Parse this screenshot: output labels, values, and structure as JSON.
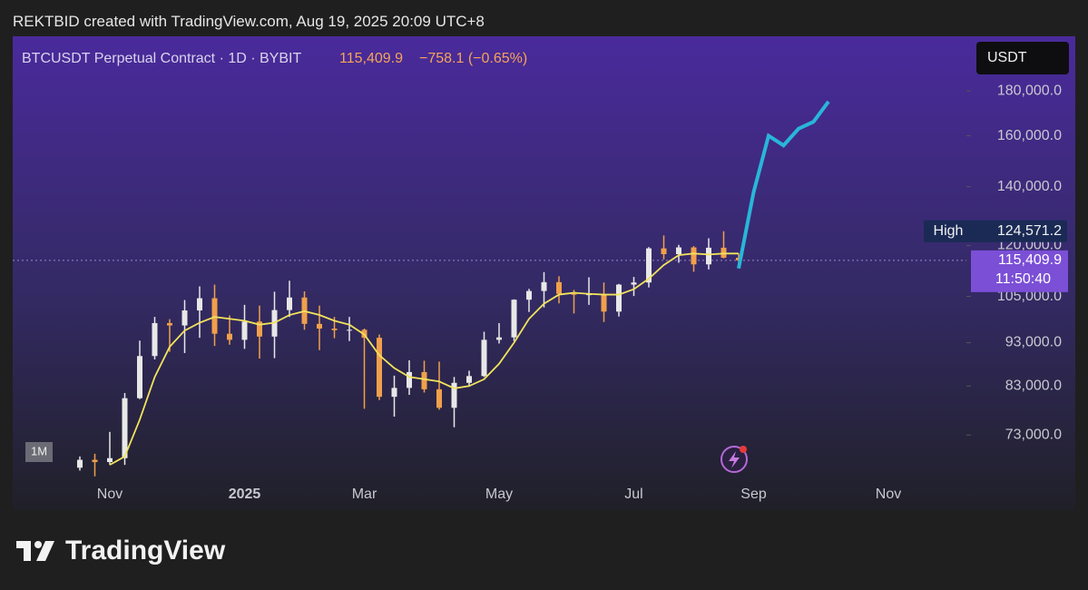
{
  "header": "REKTBID created with TradingView.com, Aug 19, 2025 20:09 UTC+8",
  "chart_data": {
    "type": "candlestick",
    "title": "BTCUSDT Perpetual Contract · 1D · BYBIT",
    "last": {
      "value": 115409.9,
      "label": "115,409.9"
    },
    "change_label": "−758.1 (−0.65%)",
    "countdown": "11:50:40",
    "currency": "USDT",
    "interval_badge": "1M",
    "high_marker": {
      "text": "High",
      "value": 124571.2,
      "label": "124,571.2"
    },
    "log_scale": true,
    "ylim": [
      65000,
      207700
    ],
    "yticks": [
      {
        "value": 73000,
        "label": "73,000.0"
      },
      {
        "value": 83000,
        "label": "83,000.0"
      },
      {
        "value": 93000,
        "label": "93,000.0"
      },
      {
        "value": 105000,
        "label": "105,000.0"
      },
      {
        "value": 120000,
        "label": "120,000.0"
      },
      {
        "value": 140000,
        "label": "140,000.0"
      },
      {
        "value": 160000,
        "label": "160,000.0"
      },
      {
        "value": 180000,
        "label": "180,000.0"
      }
    ],
    "categories": [
      null,
      null,
      "Nov",
      null,
      null,
      null,
      null,
      null,
      null,
      null,
      null,
      "2025",
      null,
      null,
      null,
      null,
      null,
      null,
      null,
      "Mar",
      null,
      null,
      null,
      null,
      null,
      null,
      null,
      null,
      "May",
      null,
      null,
      null,
      null,
      null,
      null,
      null,
      null,
      "Jul",
      null,
      null,
      null,
      null,
      null,
      null,
      null,
      "Sep",
      null,
      null,
      null,
      null,
      null,
      null,
      null,
      null,
      "Nov",
      null,
      null,
      null,
      null
    ],
    "up_color": "#e8e8e8",
    "down_color": "#f0a04b",
    "open": [
      67000,
      68400,
      68000,
      68700,
      80400,
      89800,
      97900,
      97300,
      101200,
      104500,
      95200,
      93700,
      98300,
      94500,
      101300,
      104700,
      97700,
      96500,
      96100,
      96200,
      94200,
      80700,
      82600,
      86100,
      82300,
      78400,
      83700,
      85200,
      93700,
      94300,
      104100,
      106500,
      109000,
      105700,
      105600,
      105600,
      100900,
      108300,
      108900,
      119100,
      117300,
      119400,
      114200,
      119300,
      116200,
      null,
      null,
      null,
      null,
      null,
      null,
      null,
      null,
      null,
      null,
      null,
      null,
      null,
      null
    ],
    "high": [
      69000,
      69500,
      73600,
      81500,
      93500,
      99500,
      98900,
      104000,
      107800,
      108300,
      99900,
      102700,
      102500,
      106300,
      109400,
      106400,
      102500,
      99500,
      99500,
      96500,
      95000,
      85300,
      88800,
      88700,
      88500,
      85000,
      86400,
      95700,
      97900,
      104200,
      107100,
      111900,
      110700,
      106800,
      110400,
      108900,
      108500,
      110500,
      119500,
      123200,
      120200,
      119800,
      122300,
      124571.2,
      117500,
      null,
      null,
      null,
      null,
      null,
      null,
      null,
      null,
      null,
      null,
      null,
      null,
      null,
      null
    ],
    "low": [
      66500,
      65500,
      67500,
      67500,
      80200,
      89000,
      90800,
      90500,
      94200,
      92200,
      92500,
      91500,
      89200,
      89300,
      99500,
      96200,
      91200,
      94100,
      93400,
      78200,
      80000,
      76600,
      81100,
      81600,
      78000,
      74500,
      83000,
      85000,
      92800,
      93400,
      100800,
      102000,
      103100,
      100400,
      102700,
      98200,
      99600,
      105100,
      107500,
      115700,
      114700,
      112000,
      112700,
      116000,
      114700,
      null,
      null,
      null,
      null,
      null,
      null,
      null,
      null,
      null,
      null,
      null,
      null,
      null,
      null
    ],
    "close": [
      68400,
      68000,
      68700,
      80400,
      89800,
      97900,
      97300,
      101200,
      104500,
      95200,
      93700,
      98300,
      94500,
      101300,
      104700,
      97700,
      96500,
      96100,
      96200,
      94200,
      80700,
      82600,
      86100,
      82300,
      78400,
      83700,
      85200,
      93700,
      94300,
      104100,
      106500,
      109000,
      105700,
      105600,
      105600,
      100900,
      108300,
      108900,
      119100,
      117300,
      119400,
      114200,
      119300,
      116200,
      115409.9,
      null,
      null,
      null,
      null,
      null,
      null,
      null,
      null,
      null,
      null,
      null,
      null,
      null,
      null
    ],
    "moving_average": {
      "color": "#f2e35c",
      "values": [
        null,
        null,
        67500,
        69000,
        76000,
        85000,
        92000,
        96000,
        98000,
        99500,
        99000,
        98500,
        97500,
        98000,
        100000,
        101000,
        100000,
        98500,
        97500,
        95000,
        90000,
        87000,
        85000,
        84500,
        84000,
        82500,
        83000,
        84500,
        88000,
        93000,
        99000,
        103000,
        105500,
        106000,
        105700,
        105500,
        105500,
        107000,
        110000,
        114000,
        117000,
        117500,
        117200,
        117500,
        117500,
        null,
        null,
        null,
        null,
        null,
        null,
        null,
        null,
        null,
        null,
        null,
        null,
        null,
        null
      ]
    },
    "projection": {
      "color": "#29b6d9",
      "values": [
        null,
        null,
        null,
        null,
        null,
        null,
        null,
        null,
        null,
        null,
        null,
        null,
        null,
        null,
        null,
        null,
        null,
        null,
        null,
        null,
        null,
        null,
        null,
        null,
        null,
        null,
        null,
        null,
        null,
        null,
        null,
        null,
        null,
        null,
        null,
        null,
        null,
        null,
        null,
        null,
        null,
        null,
        null,
        null,
        113000,
        138000,
        160000,
        156000,
        163000,
        166000,
        175000,
        null,
        null,
        null,
        null,
        null,
        null,
        null,
        null
      ]
    }
  },
  "footer": {
    "logo_text": "TradingView"
  }
}
